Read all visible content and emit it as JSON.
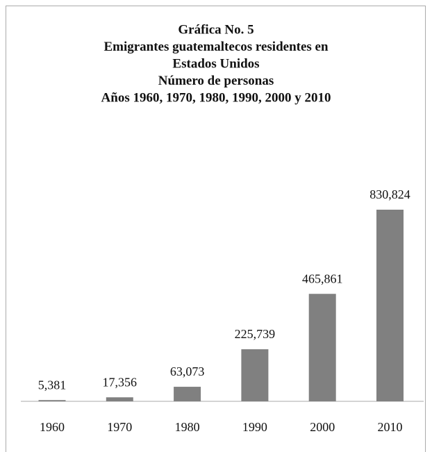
{
  "chart_data": {
    "type": "bar",
    "title": [
      "Gráfica No. 5",
      "Emigrantes guatemaltecos residentes en",
      "Estados Unidos",
      "Número de personas",
      "Años 1960, 1970, 1980, 1990, 2000 y 2010"
    ],
    "categories": [
      "1960",
      "1970",
      "1980",
      "1990",
      "2000",
      "2010"
    ],
    "values": [
      5381,
      17356,
      63073,
      225739,
      465861,
      830824
    ],
    "value_labels": [
      "5,381",
      "17,356",
      "63,073",
      "225,739",
      "465,861",
      "830,824"
    ],
    "color": "#808080"
  }
}
